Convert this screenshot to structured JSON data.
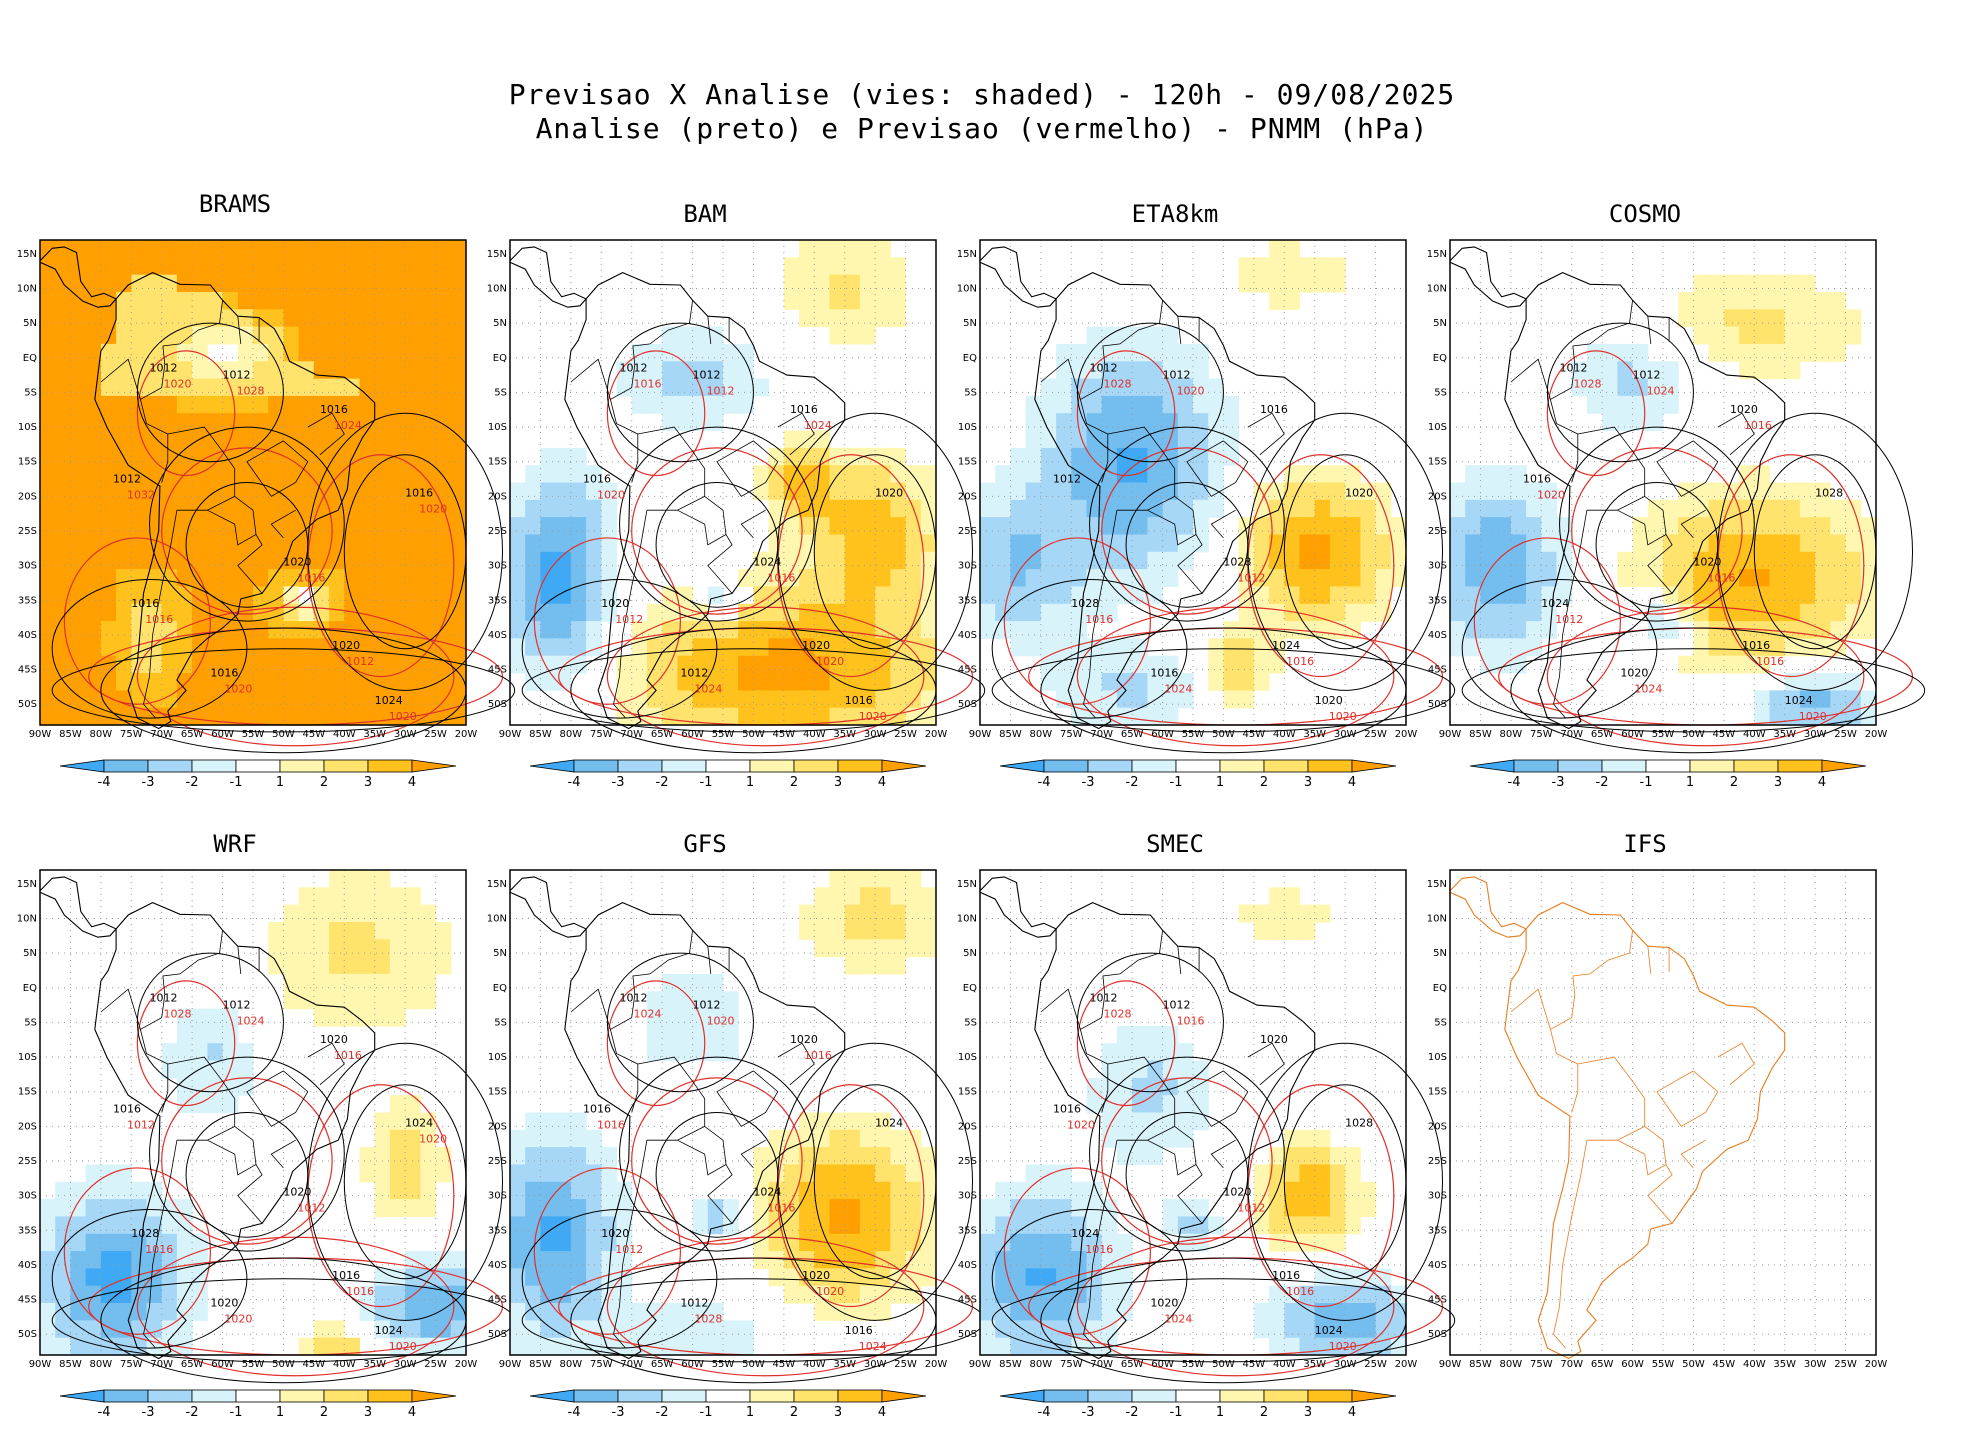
{
  "title": {
    "line1": "Previsao X Analise (vies: shaded) - 120h - 09/08/2025",
    "line2": "Analise (preto) e Previsao (vermelho) - PNMM (hPa)"
  },
  "colors": {
    "neg4": "#3fa9f5",
    "neg3": "#73beef",
    "neg2": "#a7d7f7",
    "neg1": "#d9f3fb",
    "zero": "#ffffff",
    "pos1": "#fff7b0",
    "pos2": "#ffe36c",
    "pos3": "#ffc21c",
    "pos4": "#ffa000",
    "analysis_contour": "#000000",
    "forecast_contour": "#e0302a",
    "ifs_coast": "#e87d20"
  },
  "chart_data": [
    {
      "type": "heatmap",
      "title": "BRAMS",
      "bias_pattern": "warm_everywhere",
      "x_ticks": [
        "90W",
        "85W",
        "80W",
        "75W",
        "70W",
        "65W",
        "60W",
        "55W",
        "50W",
        "45W",
        "40W",
        "35W",
        "30W",
        "25W",
        "20W"
      ],
      "y_ticks": [
        "15N",
        "10N",
        "5N",
        "EQ",
        "5S",
        "10S",
        "15S",
        "20S",
        "25S",
        "30S",
        "35S",
        "40S",
        "45S",
        "50S"
      ],
      "colorbar": [
        "-4",
        "-3",
        "-2",
        "-1",
        "1",
        "2",
        "3",
        "4"
      ],
      "isobar_labels_analysis": [
        "1012",
        "1012",
        "1012",
        "1016",
        "1016",
        "1016",
        "1020",
        "1020",
        "1024",
        "1016"
      ],
      "isobar_labels_forecast": [
        "1016",
        "1016",
        "1012",
        "1020",
        "1020",
        "1020",
        "1028",
        "1032",
        "1024",
        "1020"
      ]
    },
    {
      "type": "heatmap",
      "title": "BAM",
      "bias_pattern": "cold_west_warm_south",
      "x_ticks": [
        "90W",
        "85W",
        "80W",
        "75W",
        "70W",
        "65W",
        "60W",
        "55W",
        "50W",
        "45W",
        "40W",
        "35W",
        "30W",
        "25W",
        "20W"
      ],
      "y_ticks": [
        "15N",
        "10N",
        "5N",
        "EQ",
        "5S",
        "10S",
        "15S",
        "20S",
        "25S",
        "30S",
        "35S",
        "40S",
        "45S",
        "50S"
      ],
      "colorbar": [
        "-4",
        "-3",
        "-2",
        "-1",
        "1",
        "2",
        "3",
        "4"
      ],
      "isobar_labels_analysis": [
        "1012",
        "1012",
        "1016",
        "1016",
        "1020",
        "1020",
        "1024",
        "1020",
        "1016",
        "1012"
      ],
      "isobar_labels_forecast": [
        "1012",
        "1016",
        "1020",
        "1020",
        "1024",
        "1016",
        "1012",
        "1020",
        "1024"
      ]
    },
    {
      "type": "heatmap",
      "title": "ETA8km",
      "bias_pattern": "cold_land_warm_atlantic",
      "x_ticks": [
        "90W",
        "85W",
        "80W",
        "75W",
        "70W",
        "65W",
        "60W",
        "55W",
        "50W",
        "45W",
        "40W",
        "35W",
        "30W",
        "25W",
        "20W"
      ],
      "y_ticks": [
        "15N",
        "10N",
        "5N",
        "EQ",
        "5S",
        "10S",
        "15S",
        "20S",
        "25S",
        "30S",
        "35S",
        "40S",
        "45S",
        "50S"
      ],
      "colorbar": [
        "-4",
        "-3",
        "-2",
        "-1",
        "1",
        "2",
        "3",
        "4"
      ],
      "isobar_labels_analysis": [
        "1012",
        "1012",
        "1012",
        "1016",
        "1020",
        "1028",
        "1028",
        "1024",
        "1020",
        "1016"
      ],
      "isobar_labels_forecast": [
        "1016",
        "1012",
        "1016",
        "1020",
        "1024",
        "1028",
        "1020"
      ]
    },
    {
      "type": "heatmap",
      "title": "COSMO",
      "bias_pattern": "cold_west_warm_southeast",
      "x_ticks": [
        "90W",
        "85W",
        "80W",
        "75W",
        "70W",
        "65W",
        "60W",
        "55W",
        "50W",
        "45W",
        "40W",
        "35W",
        "30W",
        "25W",
        "20W"
      ],
      "y_ticks": [
        "15N",
        "10N",
        "5N",
        "EQ",
        "5S",
        "10S",
        "15S",
        "20S",
        "25S",
        "30S",
        "35S",
        "40S",
        "45S",
        "50S"
      ],
      "colorbar": [
        "-4",
        "-3",
        "-2",
        "-1",
        "1",
        "2",
        "3",
        "4"
      ],
      "isobar_labels_analysis": [
        "1012",
        "1012",
        "1016",
        "1020",
        "1028",
        "1024",
        "1020",
        "1016",
        "1024",
        "1020"
      ],
      "isobar_labels_forecast": [
        "1012",
        "1016",
        "1016",
        "1020",
        "1024",
        "1028",
        "1024",
        "1020",
        "1016"
      ]
    },
    {
      "type": "heatmap",
      "title": "WRF",
      "bias_pattern": "cold_southwest_warm_northeast",
      "x_ticks": [
        "90W",
        "85W",
        "80W",
        "75W",
        "70W",
        "65W",
        "60W",
        "55W",
        "50W",
        "45W",
        "40W",
        "35W",
        "30W",
        "25W",
        "20W"
      ],
      "y_ticks": [
        "15N",
        "10N",
        "5N",
        "EQ",
        "5S",
        "10S",
        "15S",
        "20S",
        "25S",
        "30S",
        "35S",
        "40S",
        "45S",
        "50S"
      ],
      "colorbar": [
        "-4",
        "-3",
        "-2",
        "-1",
        "1",
        "2",
        "3",
        "4"
      ],
      "isobar_labels_analysis": [
        "1012",
        "1012",
        "1016",
        "1020",
        "1024",
        "1028",
        "1020",
        "1016",
        "1024",
        "1020"
      ],
      "isobar_labels_forecast": [
        "1016",
        "1012",
        "1016",
        "1020",
        "1020",
        "1028",
        "1024",
        "1012",
        "1016",
        "1020"
      ]
    },
    {
      "type": "heatmap",
      "title": "GFS",
      "bias_pattern": "cold_west_warm_atlantic",
      "x_ticks": [
        "90W",
        "85W",
        "80W",
        "75W",
        "70W",
        "65W",
        "60W",
        "55W",
        "50W",
        "45W",
        "40W",
        "35W",
        "30W",
        "25W",
        "20W"
      ],
      "y_ticks": [
        "15N",
        "10N",
        "5N",
        "EQ",
        "5S",
        "10S",
        "15S",
        "20S",
        "25S",
        "30S",
        "35S",
        "40S",
        "45S",
        "50S"
      ],
      "colorbar": [
        "-4",
        "-3",
        "-2",
        "-1",
        "1",
        "2",
        "3",
        "4"
      ],
      "isobar_labels_analysis": [
        "1012",
        "1012",
        "1016",
        "1020",
        "1024",
        "1020",
        "1024",
        "1020",
        "1016",
        "1012"
      ],
      "isobar_labels_forecast": [
        "1012",
        "1016",
        "1020",
        "1024",
        "1028",
        "1024",
        "1020",
        "1016",
        "1016"
      ]
    },
    {
      "type": "heatmap",
      "title": "SMEC",
      "bias_pattern": "cold_southwest_warm_patch",
      "x_ticks": [
        "90W",
        "85W",
        "80W",
        "75W",
        "70W",
        "65W",
        "60W",
        "55W",
        "50W",
        "45W",
        "40W",
        "35W",
        "30W",
        "25W",
        "20W"
      ],
      "y_ticks": [
        "15N",
        "10N",
        "5N",
        "EQ",
        "5S",
        "10S",
        "15S",
        "20S",
        "25S",
        "30S",
        "35S",
        "40S",
        "45S",
        "50S"
      ],
      "colorbar": [
        "-4",
        "-3",
        "-2",
        "-1",
        "1",
        "2",
        "3",
        "4"
      ],
      "isobar_labels_analysis": [
        "1012",
        "1012",
        "1016",
        "1020",
        "1028",
        "1024",
        "1020",
        "1016",
        "1024",
        "1020"
      ],
      "isobar_labels_forecast": [
        "1016",
        "1012",
        "1016",
        "1020",
        "1024",
        "1028",
        "1016",
        "1020"
      ]
    },
    {
      "type": "heatmap",
      "title": "IFS",
      "bias_pattern": "empty",
      "x_ticks": [
        "90W",
        "85W",
        "80W",
        "75W",
        "70W",
        "65W",
        "60W",
        "55W",
        "50W",
        "45W",
        "40W",
        "35W",
        "30W",
        "25W",
        "20W"
      ],
      "y_ticks": [
        "15N",
        "10N",
        "5N",
        "EQ",
        "5S",
        "10S",
        "15S",
        "20S",
        "25S",
        "30S",
        "35S",
        "40S",
        "45S",
        "50S"
      ],
      "colorbar": [],
      "isobar_labels_analysis": [],
      "isobar_labels_forecast": []
    }
  ]
}
